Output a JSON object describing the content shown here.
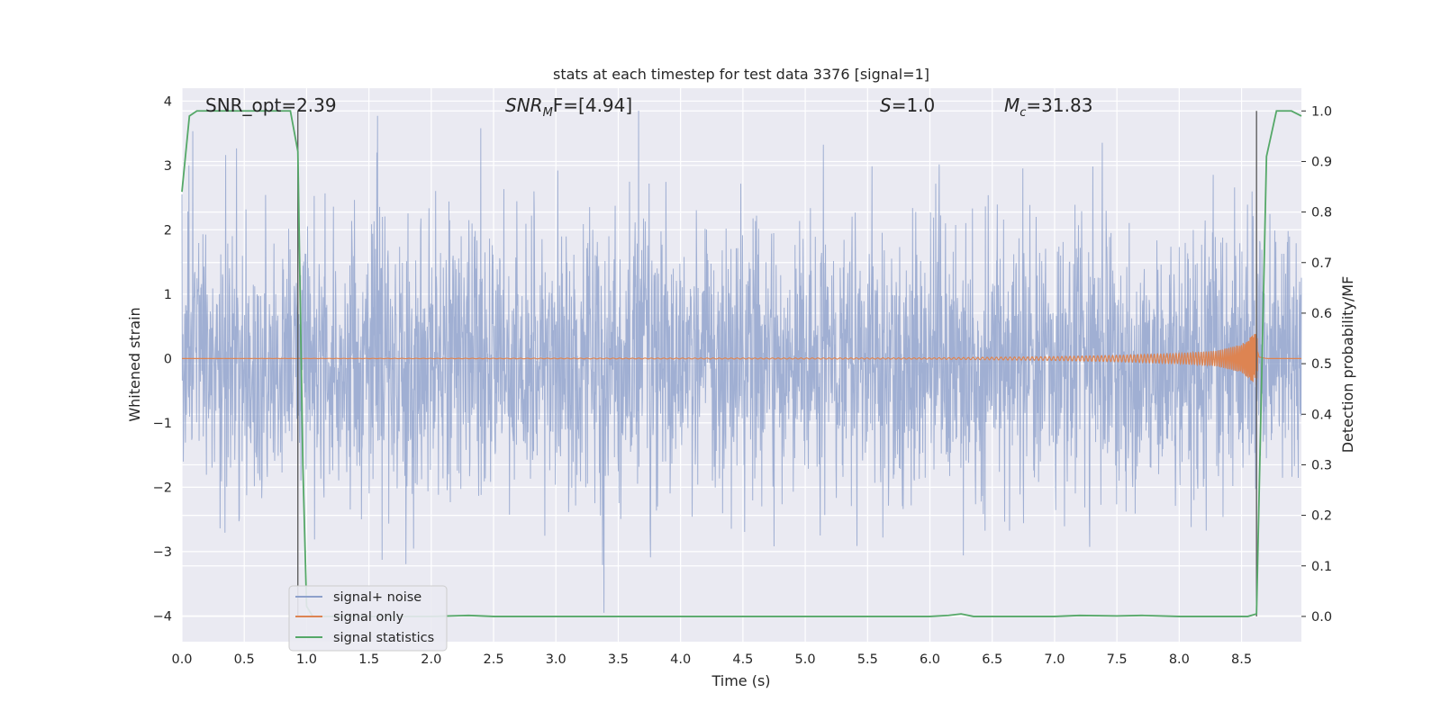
{
  "chart_data": {
    "type": "line",
    "title": "stats at each timestep for test data 3376 [signal=1]",
    "xlabel": "Time (s)",
    "ylabel_left": "Whitened strain",
    "ylabel_right": "Detection probability/MF",
    "xlim": [
      0.0,
      8.98
    ],
    "ylim_left": [
      -4.4,
      4.2
    ],
    "ylim_right": [
      -0.05,
      1.045
    ],
    "xticks": [
      "0.0",
      "0.5",
      "1.0",
      "1.5",
      "2.0",
      "2.5",
      "3.0",
      "3.5",
      "4.0",
      "4.5",
      "5.0",
      "5.5",
      "6.0",
      "6.5",
      "7.0",
      "7.5",
      "8.0",
      "8.5"
    ],
    "yticks_left": [
      "4",
      "3",
      "2",
      "1",
      "0",
      "−1",
      "−2",
      "−3",
      "−4"
    ],
    "yticks_right": [
      "1.0",
      "0.9",
      "0.8",
      "0.7",
      "0.6",
      "0.5",
      "0.4",
      "0.3",
      "0.2",
      "0.1",
      "0.0"
    ],
    "grid": true,
    "legend_placement": "lower-left",
    "annotations": {
      "snr_opt": "SNR_opt=2.39",
      "snr_mf_prefix": "SNR",
      "snr_mf_sub": "M",
      "snr_mf_suffix": "F=[4.94]",
      "s_var": "S",
      "s_value": "=1.0",
      "mc_var": "M",
      "mc_sub": "c",
      "mc_value": "=31.83"
    },
    "vlines_x": [
      0.93,
      8.62
    ],
    "series": [
      {
        "name": "signal+ noise",
        "color": "#8da0cb",
        "description_values": "random noise band between approximately -2.5 and 2.5, extremes near ±4"
      },
      {
        "name": "signal only",
        "color": "#dd8452",
        "x": [
          0.0,
          6.0,
          7.0,
          7.5,
          8.0,
          8.3,
          8.5,
          8.6,
          8.62,
          8.64,
          8.7,
          8.98
        ],
        "amplitude": [
          0.0,
          0.01,
          0.03,
          0.05,
          0.08,
          0.12,
          0.22,
          0.38,
          0.42,
          0.05,
          0.0,
          0.0
        ]
      },
      {
        "name": "signal statistics",
        "color": "#55a868",
        "x": [
          0.0,
          0.06,
          0.12,
          0.25,
          0.5,
          0.75,
          0.87,
          0.93,
          0.97,
          1.0,
          1.05,
          1.2,
          1.5,
          2.0,
          2.3,
          2.5,
          3.0,
          4.0,
          5.0,
          6.0,
          6.15,
          6.25,
          6.35,
          6.5,
          7.0,
          7.2,
          7.5,
          7.7,
          8.0,
          8.55,
          8.62,
          8.7,
          8.78,
          8.9,
          8.98
        ],
        "y": [
          0.84,
          0.99,
          1.0,
          1.0,
          1.0,
          1.0,
          1.0,
          0.92,
          0.3,
          0.02,
          0.0,
          0.0,
          0.0,
          0.0,
          0.002,
          0.0,
          0.0,
          0.0,
          0.0,
          0.0,
          0.002,
          0.005,
          0.0,
          0.0,
          0.0,
          0.002,
          0.001,
          0.002,
          0.0,
          0.0,
          0.005,
          0.91,
          1.0,
          1.0,
          0.99
        ]
      }
    ]
  }
}
